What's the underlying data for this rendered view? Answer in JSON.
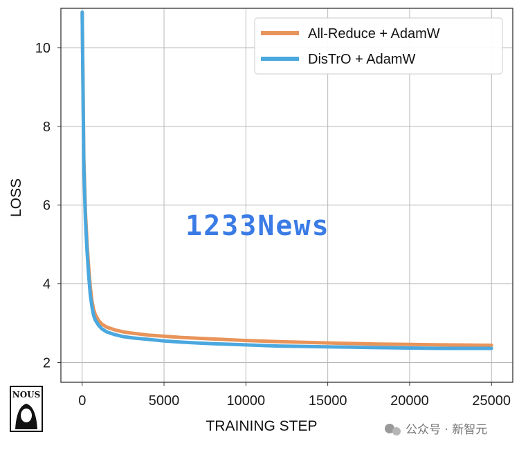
{
  "chart_data": {
    "type": "line",
    "title": "",
    "xlabel": "TRAINING STEP",
    "ylabel": "LOSS",
    "xlim": [
      -1300,
      26300
    ],
    "ylim": [
      1.5,
      11.0
    ],
    "xticks": [
      0,
      5000,
      10000,
      15000,
      20000,
      25000
    ],
    "yticks": [
      2,
      4,
      6,
      8,
      10
    ],
    "grid": true,
    "legend_position": "top-right",
    "series": [
      {
        "name": "All-Reduce + AdamW",
        "color": "#e8945a",
        "x": [
          0,
          100,
          200,
          300,
          400,
          500,
          600,
          700,
          800,
          1000,
          1200,
          1500,
          2000,
          2500,
          3000,
          4000,
          5000,
          6000,
          7000,
          8000,
          10000,
          12000,
          15000,
          18000,
          20000,
          22000,
          25000
        ],
        "y": [
          10.9,
          7.2,
          5.8,
          5.0,
          4.4,
          3.9,
          3.55,
          3.35,
          3.22,
          3.07,
          2.98,
          2.9,
          2.83,
          2.78,
          2.75,
          2.7,
          2.67,
          2.64,
          2.62,
          2.6,
          2.56,
          2.53,
          2.5,
          2.47,
          2.46,
          2.45,
          2.44
        ]
      },
      {
        "name": "DisTrO + AdamW",
        "color": "#4ba8df",
        "x": [
          0,
          100,
          200,
          300,
          400,
          500,
          600,
          700,
          800,
          1000,
          1200,
          1500,
          2000,
          2500,
          3000,
          4000,
          5000,
          6000,
          7000,
          8000,
          10000,
          12000,
          15000,
          18000,
          20000,
          22000,
          25000
        ],
        "y": [
          10.9,
          7.0,
          5.6,
          4.8,
          4.2,
          3.7,
          3.4,
          3.2,
          3.08,
          2.95,
          2.86,
          2.78,
          2.71,
          2.66,
          2.63,
          2.59,
          2.55,
          2.52,
          2.5,
          2.48,
          2.45,
          2.42,
          2.4,
          2.38,
          2.37,
          2.36,
          2.36
        ]
      }
    ]
  },
  "overlays": {
    "watermark": "1233News",
    "logo_text": "NOUS",
    "credit": "公众号 · 新智元"
  }
}
